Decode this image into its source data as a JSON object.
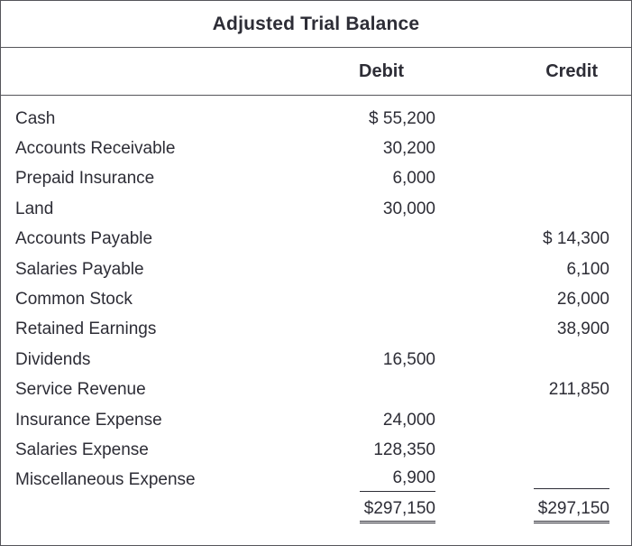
{
  "title": "Adjusted Trial Balance",
  "columns": {
    "debit": "Debit",
    "credit": "Credit"
  },
  "rows": [
    {
      "account": "Cash",
      "debit": "$ 55,200",
      "credit": ""
    },
    {
      "account": "Accounts Receivable",
      "debit": "30,200",
      "credit": ""
    },
    {
      "account": "Prepaid Insurance",
      "debit": "6,000",
      "credit": ""
    },
    {
      "account": "Land",
      "debit": "30,000",
      "credit": ""
    },
    {
      "account": "Accounts Payable",
      "debit": "",
      "credit": "$ 14,300"
    },
    {
      "account": "Salaries Payable",
      "debit": "",
      "credit": "6,100"
    },
    {
      "account": "Common Stock",
      "debit": "",
      "credit": "26,000"
    },
    {
      "account": "Retained Earnings",
      "debit": "",
      "credit": "38,900"
    },
    {
      "account": "Dividends",
      "debit": "16,500",
      "credit": ""
    },
    {
      "account": "Service Revenue",
      "debit": "",
      "credit": "211,850"
    },
    {
      "account": "Insurance Expense",
      "debit": "24,000",
      "credit": ""
    },
    {
      "account": "Salaries Expense",
      "debit": "128,350",
      "credit": ""
    },
    {
      "account": "Miscellaneous Expense",
      "debit": "6,900",
      "credit": ""
    }
  ],
  "totals": {
    "debit": "$297,150",
    "credit": "$297,150"
  },
  "colors": {
    "text": "#2d2d36",
    "border": "#55555a",
    "background": "#ffffff"
  }
}
